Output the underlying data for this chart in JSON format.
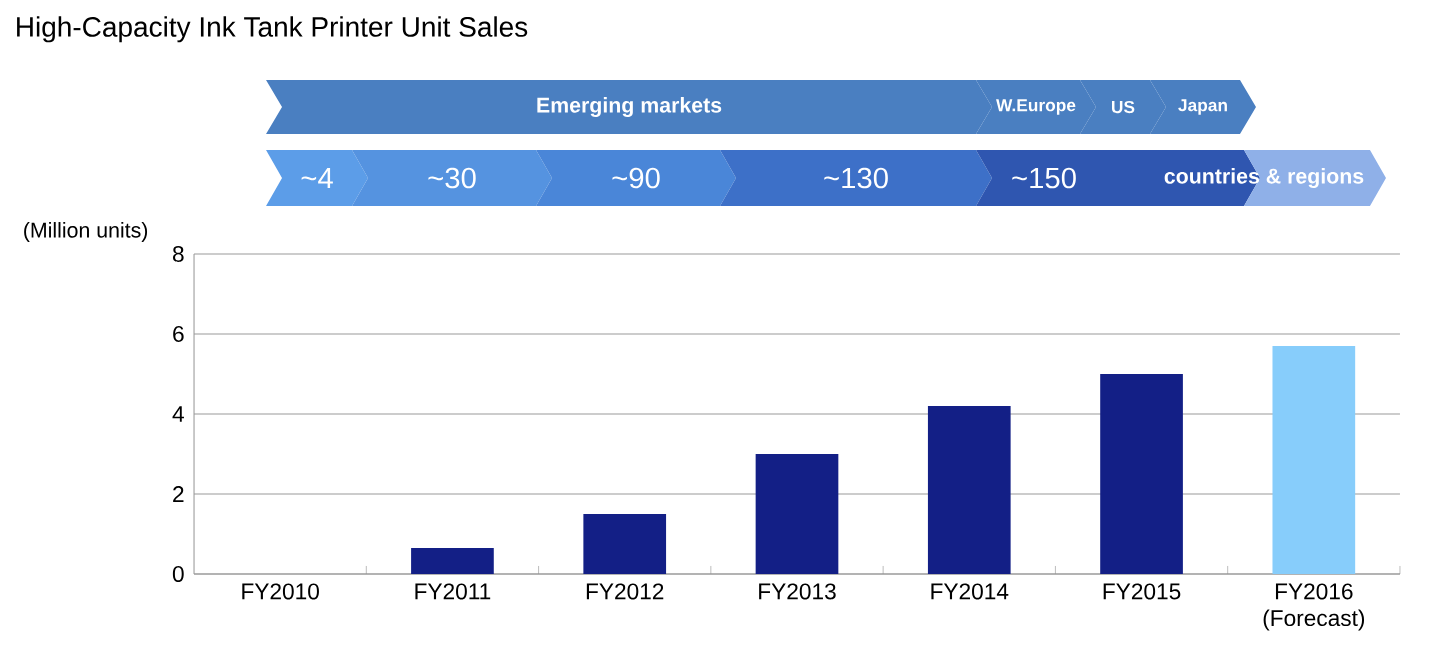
{
  "chart_data": {
    "type": "bar",
    "title": "High-Capacity Ink Tank Printer Unit Sales",
    "ylabel": "(Million units)",
    "categories": [
      "FY2010",
      "FY2011",
      "FY2012",
      "FY2013",
      "FY2014",
      "FY2015",
      "FY2016 (Forecast)"
    ],
    "values": [
      0,
      0.65,
      1.5,
      3.0,
      4.2,
      5.0,
      5.7
    ],
    "colors": [
      "#131f86",
      "#131f86",
      "#131f86",
      "#131f86",
      "#131f86",
      "#131f86",
      "#87cdfb"
    ],
    "ylim": [
      0,
      8
    ],
    "yticks": [
      0,
      2,
      4,
      6,
      8
    ],
    "grid": "y",
    "annotations": [
      "Emerging markets",
      "W.Europe",
      "US",
      "Japan",
      "~4",
      "~30",
      "~90",
      "~130",
      "~150",
      "countries & regions"
    ]
  }
}
